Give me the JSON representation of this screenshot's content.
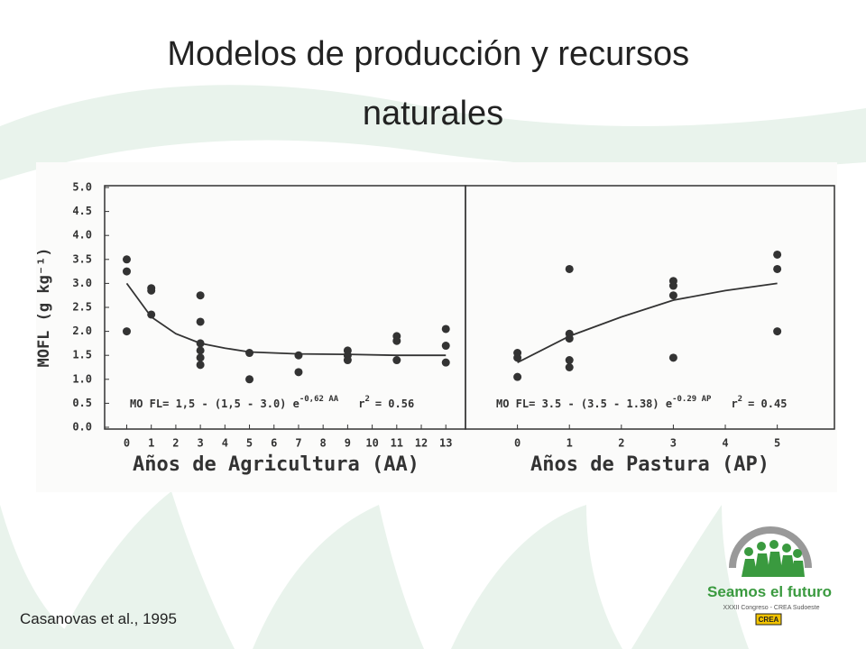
{
  "slide": {
    "title": "Modelos de producción y recursos naturales",
    "citation": "Casanovas et al., 1995",
    "logo": {
      "name": "Seamos el futuro",
      "subtitle": "XXXII Congreso - CREA Sudoeste",
      "badge": "CREA"
    }
  },
  "chart_data": [
    {
      "type": "scatter",
      "ylabel": "MOFL  (g kg⁻¹)",
      "xlabel": "Años de Agricultura (AA)",
      "xlim": [
        -0.9,
        13.8
      ],
      "ylim": [
        0,
        5
      ],
      "xticks": [
        0,
        1,
        2,
        3,
        4,
        5,
        6,
        7,
        8,
        9,
        10,
        11,
        12,
        13
      ],
      "yticks": [
        {
          "value": 0,
          "label": "0.0"
        },
        0.5,
        {
          "value": 1,
          "label": "1.0"
        },
        1.5,
        {
          "value": 2,
          "label": "2.0"
        },
        2.5,
        {
          "value": 3,
          "label": "3.0"
        },
        3.5,
        {
          "value": 4,
          "label": "4.0"
        },
        4.5,
        {
          "value": 5,
          "label": "5.0"
        }
      ],
      "series": [
        {
          "type": "scatter",
          "color": "#333333",
          "x": [
            0,
            0,
            0,
            1,
            1,
            1,
            3,
            3,
            3,
            3,
            3,
            3,
            5,
            5,
            7,
            7,
            9,
            9,
            9,
            11,
            11,
            11,
            13,
            13,
            13
          ],
          "values": [
            3.5,
            3.25,
            2.0,
            2.9,
            2.85,
            2.35,
            2.75,
            2.2,
            1.75,
            1.6,
            1.45,
            1.3,
            1.55,
            1.0,
            1.5,
            1.15,
            1.6,
            1.5,
            1.4,
            1.9,
            1.8,
            1.4,
            2.05,
            1.7,
            1.35
          ]
        },
        {
          "type": "line",
          "color": "#333333",
          "x": [
            0,
            1,
            2,
            3,
            4,
            5,
            7,
            9,
            11,
            13
          ],
          "values": [
            3.0,
            2.3,
            1.95,
            1.75,
            1.65,
            1.57,
            1.53,
            1.52,
            1.5,
            1.5
          ]
        }
      ],
      "annotation": {
        "text": "MO FL= 1,5 - (1,5 - 3.0) e",
        "exponent": "-0,62 AA",
        "r": "r",
        "r_exponent": "2",
        "r_value": "= 0.56"
      }
    },
    {
      "type": "scatter",
      "xlabel": "Años de Pastura (AP)",
      "xlim": [
        -1,
        6.1
      ],
      "ylim": [
        0,
        5
      ],
      "xticks": [
        0,
        1,
        2,
        3,
        4,
        5
      ],
      "series": [
        {
          "type": "scatter",
          "color": "#333333",
          "x": [
            0,
            0,
            0,
            1,
            1,
            1,
            1,
            1,
            3,
            3,
            3,
            3,
            5,
            5,
            5
          ],
          "values": [
            1.55,
            1.45,
            1.05,
            3.3,
            1.95,
            1.85,
            1.4,
            1.25,
            3.05,
            2.95,
            2.75,
            1.45,
            3.6,
            3.3,
            2.0
          ]
        },
        {
          "type": "line",
          "color": "#333333",
          "x": [
            0,
            1,
            2,
            3,
            4,
            5
          ],
          "values": [
            1.35,
            1.9,
            2.3,
            2.65,
            2.85,
            3.0
          ]
        }
      ],
      "annotation": {
        "text": "MO FL= 3.5 - (3.5 - 1.38) e",
        "exponent": "-0.29 AP",
        "r": "r",
        "r_exponent": "2",
        "r_value": "= 0.45"
      }
    }
  ]
}
